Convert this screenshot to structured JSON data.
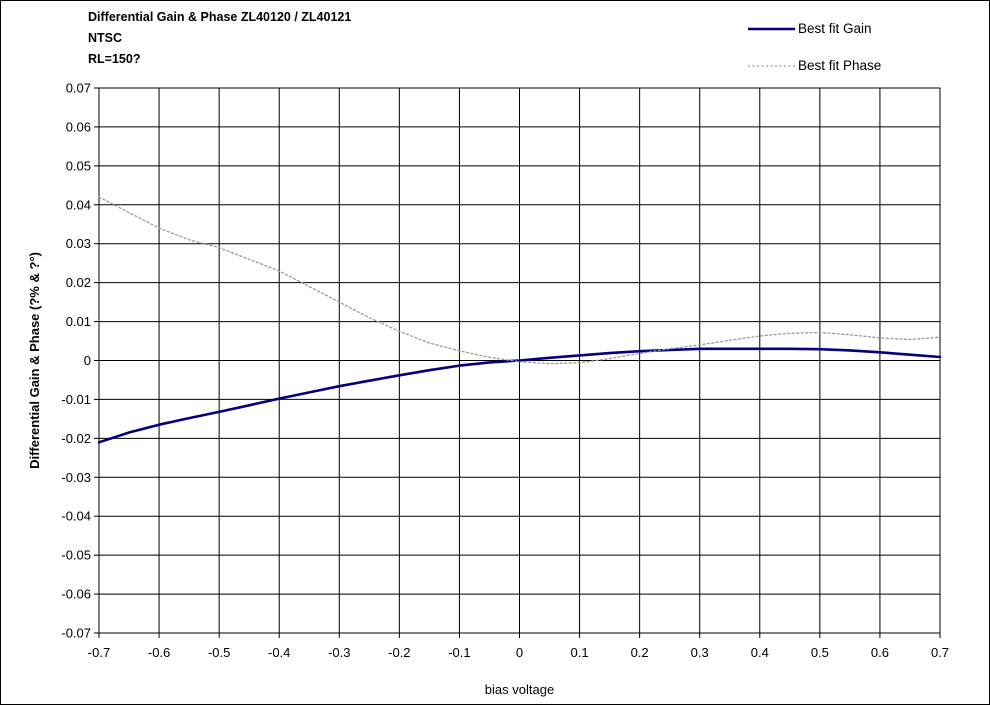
{
  "chart_data": {
    "type": "line",
    "title_lines": [
      "Differential Gain & Phase  ZL40120 / ZL40121",
      "NTSC",
      "RL=150?"
    ],
    "xlabel": "bias voltage",
    "ylabel": "Differential Gain & Phase (?% & ?°)",
    "xlim": [
      -0.7,
      0.7
    ],
    "ylim": [
      -0.07,
      0.07
    ],
    "x_ticks": [
      "-0.7",
      "-0.6",
      "-0.5",
      "-0.4",
      "-0.3",
      "-0.2",
      "-0.1",
      "0",
      "0.1",
      "0.2",
      "0.3",
      "0.4",
      "0.5",
      "0.6",
      "0.7"
    ],
    "y_ticks": [
      "0.07",
      "0.06",
      "0.05",
      "0.04",
      "0.03",
      "0.02",
      "0.01",
      "0",
      "-0.01",
      "-0.02",
      "-0.03",
      "-0.04",
      "-0.05",
      "-0.06",
      "-0.07"
    ],
    "grid": true,
    "legend_position": "top-right",
    "series": [
      {
        "name": "Best fit Gain",
        "color": "#000080",
        "style": "solid",
        "x": [
          -0.7,
          -0.65,
          -0.6,
          -0.55,
          -0.5,
          -0.45,
          -0.4,
          -0.35,
          -0.3,
          -0.25,
          -0.2,
          -0.15,
          -0.1,
          -0.05,
          0,
          0.05,
          0.1,
          0.15,
          0.2,
          0.25,
          0.3,
          0.35,
          0.4,
          0.45,
          0.5,
          0.55,
          0.6,
          0.65,
          0.7
        ],
        "values": [
          -0.021,
          -0.0185,
          -0.0165,
          -0.0148,
          -0.0132,
          -0.0115,
          -0.0098,
          -0.0082,
          -0.0066,
          -0.0052,
          -0.0038,
          -0.0025,
          -0.0013,
          -0.0005,
          0.0,
          0.0007,
          0.0013,
          0.0019,
          0.0024,
          0.0027,
          0.003,
          0.003,
          0.003,
          0.003,
          0.0029,
          0.0026,
          0.0021,
          0.0015,
          0.0009
        ]
      },
      {
        "name": "Best fit Phase",
        "color": "#999999",
        "style": "dotted",
        "x": [
          -0.7,
          -0.65,
          -0.6,
          -0.55,
          -0.5,
          -0.45,
          -0.4,
          -0.35,
          -0.3,
          -0.25,
          -0.2,
          -0.15,
          -0.1,
          -0.05,
          0,
          0.05,
          0.1,
          0.15,
          0.2,
          0.25,
          0.3,
          0.35,
          0.4,
          0.45,
          0.5,
          0.55,
          0.6,
          0.65,
          0.7
        ],
        "values": [
          0.042,
          0.038,
          0.034,
          0.031,
          0.029,
          0.026,
          0.023,
          0.019,
          0.015,
          0.011,
          0.0075,
          0.0045,
          0.0025,
          0.0008,
          -0.0003,
          -0.0008,
          -0.0006,
          0.0005,
          0.0018,
          0.003,
          0.004,
          0.0052,
          0.0063,
          0.007,
          0.0072,
          0.0066,
          0.0058,
          0.0054,
          0.006
        ]
      }
    ]
  }
}
